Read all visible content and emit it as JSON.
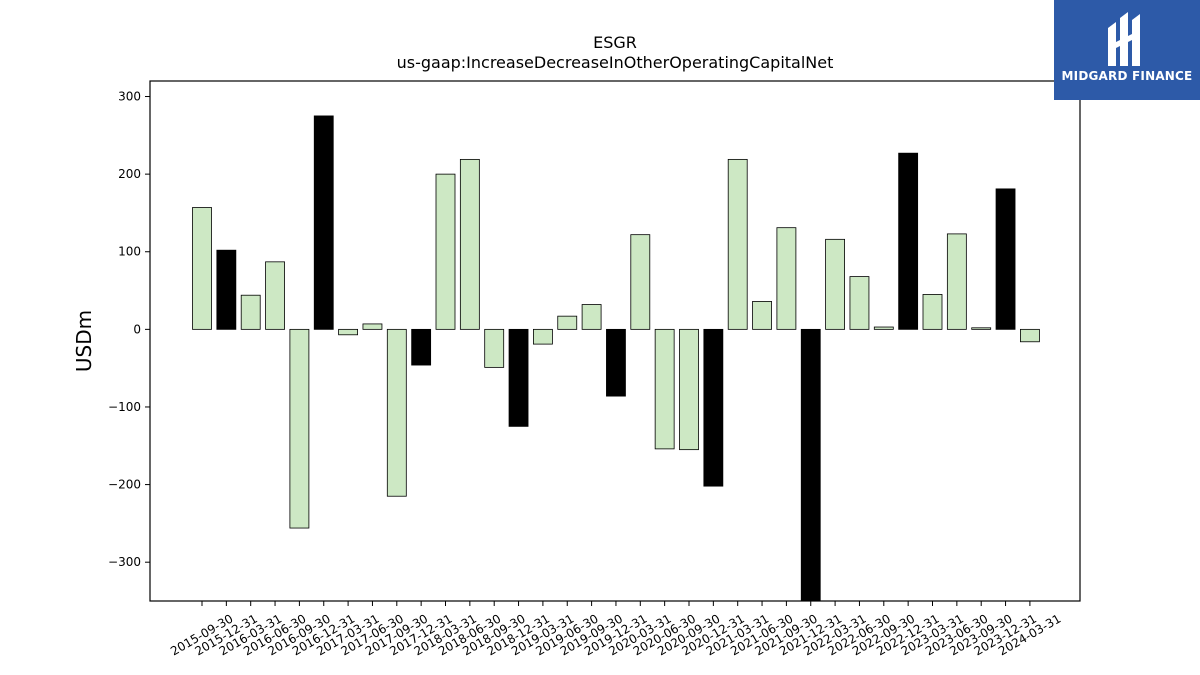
{
  "logo": {
    "text": "MIDGARD FINANCE",
    "background": "#2d5aa8"
  },
  "chart_data": {
    "type": "bar",
    "title": "ESGR",
    "subtitle": "us-gaap:IncreaseDecreaseInOtherOperatingCapitalNet",
    "xlabel": "",
    "ylabel": "USDm",
    "ylim": [
      -350,
      320
    ],
    "yticks": [
      -300,
      -200,
      -100,
      0,
      100,
      200,
      300
    ],
    "grid": false,
    "colors": {
      "quarter": "#cde8c4",
      "year_end": "#000000",
      "edge": "#000000"
    },
    "categories": [
      "2015-09-30",
      "2015-12-31",
      "2016-03-31",
      "2016-06-30",
      "2016-09-30",
      "2016-12-31",
      "2017-03-31",
      "2017-06-30",
      "2017-09-30",
      "2017-12-31",
      "2018-03-31",
      "2018-06-30",
      "2018-09-30",
      "2018-12-31",
      "2019-03-31",
      "2019-06-30",
      "2019-09-30",
      "2019-12-31",
      "2020-03-31",
      "2020-06-30",
      "2020-09-30",
      "2020-12-31",
      "2021-03-31",
      "2021-06-30",
      "2021-09-30",
      "2021-12-31",
      "2022-03-31",
      "2022-06-30",
      "2022-09-30",
      "2022-12-31",
      "2023-03-31",
      "2023-06-30",
      "2023-09-30",
      "2023-12-31",
      "2024-03-31"
    ],
    "values": [
      157,
      102,
      44,
      87,
      -256,
      275,
      -7,
      7,
      -215,
      -46,
      200,
      219,
      -49,
      -125,
      -19,
      17,
      32,
      -86,
      122,
      -154,
      -155,
      -202,
      219,
      36,
      131,
      -350,
      116,
      68,
      3,
      227,
      45,
      123,
      2,
      181,
      -16
    ]
  }
}
